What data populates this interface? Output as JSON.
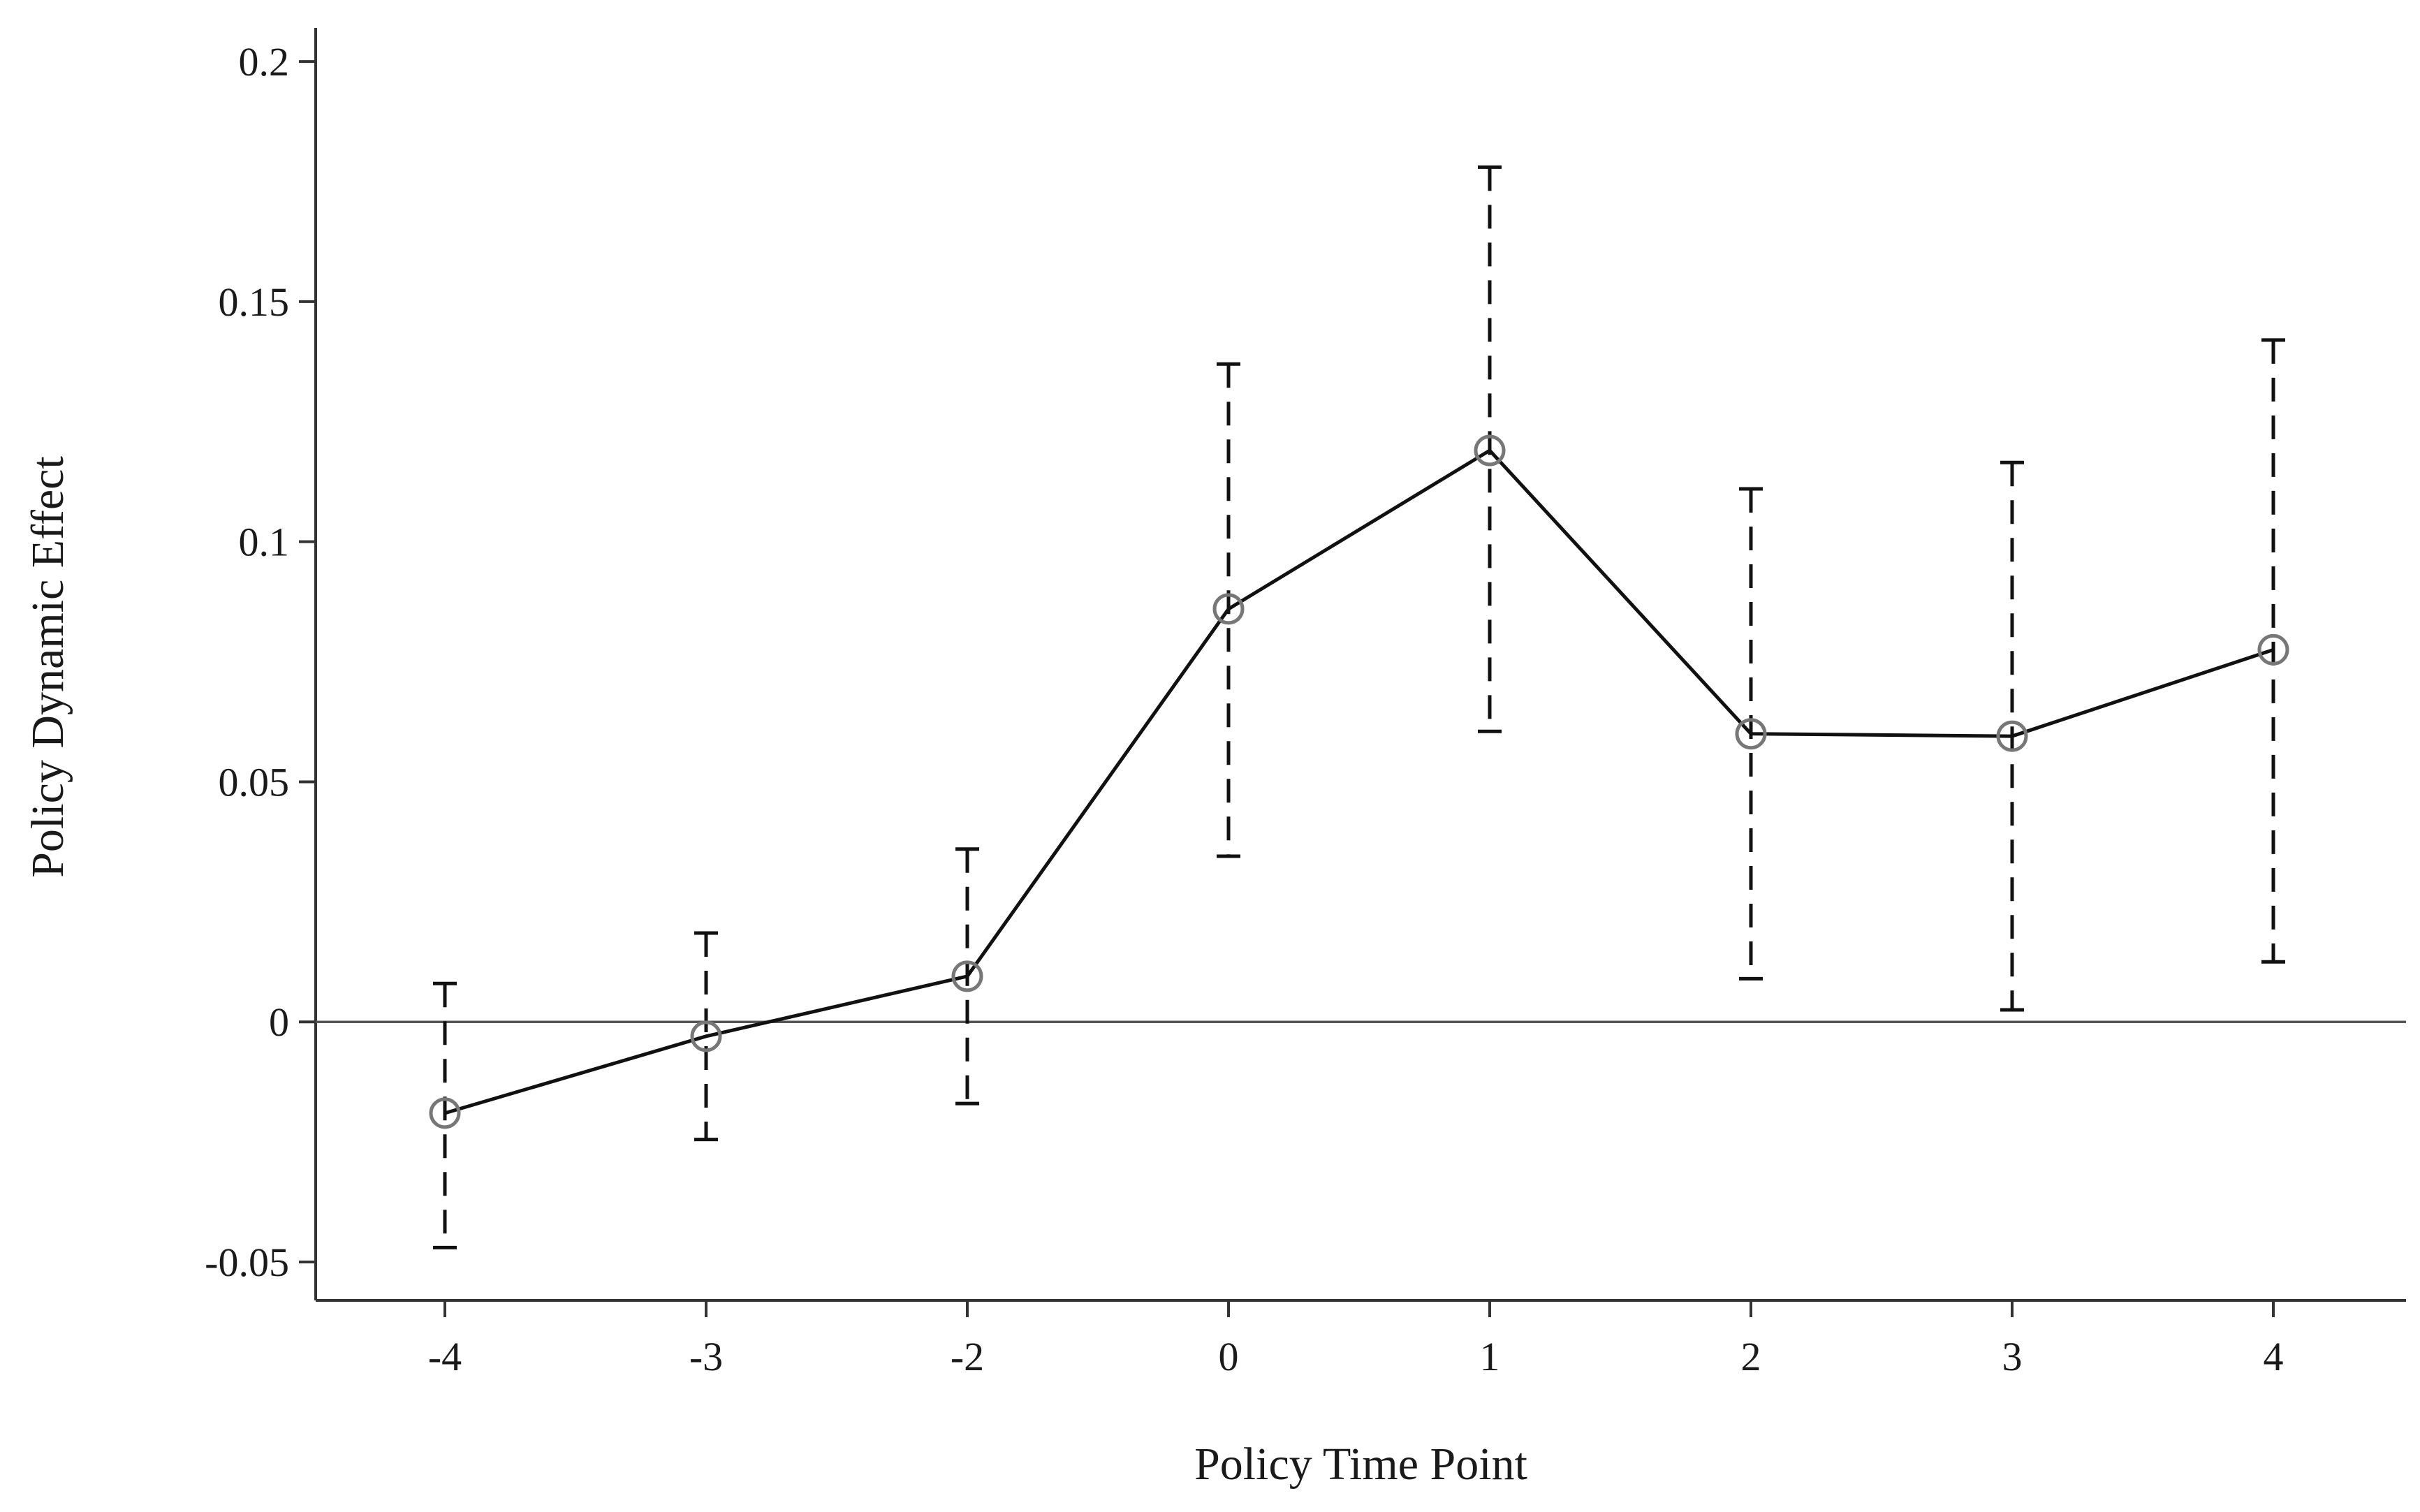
{
  "chart_data": {
    "type": "line",
    "title": "",
    "xlabel": "Policy Time Point",
    "ylabel": "Policy Dynamic Effect",
    "categories": [
      "-4",
      "-3",
      "-2",
      "0",
      "1",
      "2",
      "3",
      "4"
    ],
    "series": [
      {
        "values": [
          -0.019,
          -0.003,
          0.0095,
          0.086,
          0.119,
          0.06,
          0.0595,
          0.0775
        ],
        "ci_lower": [
          -0.047,
          -0.0245,
          -0.017,
          0.0345,
          0.0605,
          0.009,
          0.0025,
          0.0125
        ],
        "ci_upper": [
          0.008,
          0.0185,
          0.036,
          0.137,
          0.178,
          0.111,
          0.1165,
          0.142
        ]
      }
    ],
    "ylim": [
      -0.058,
      0.207
    ],
    "yticks": [
      -0.05,
      0,
      0.05,
      0.1,
      0.15,
      0.2
    ],
    "ytick_labels": [
      "-0.05",
      "0",
      "0.05",
      "0.1",
      "0.15",
      "0.2"
    ],
    "reference_line_y": 0,
    "grid": false,
    "legend": "none",
    "colors": {
      "line": "#111111",
      "marker": "#777777",
      "axis": "#333333"
    }
  }
}
